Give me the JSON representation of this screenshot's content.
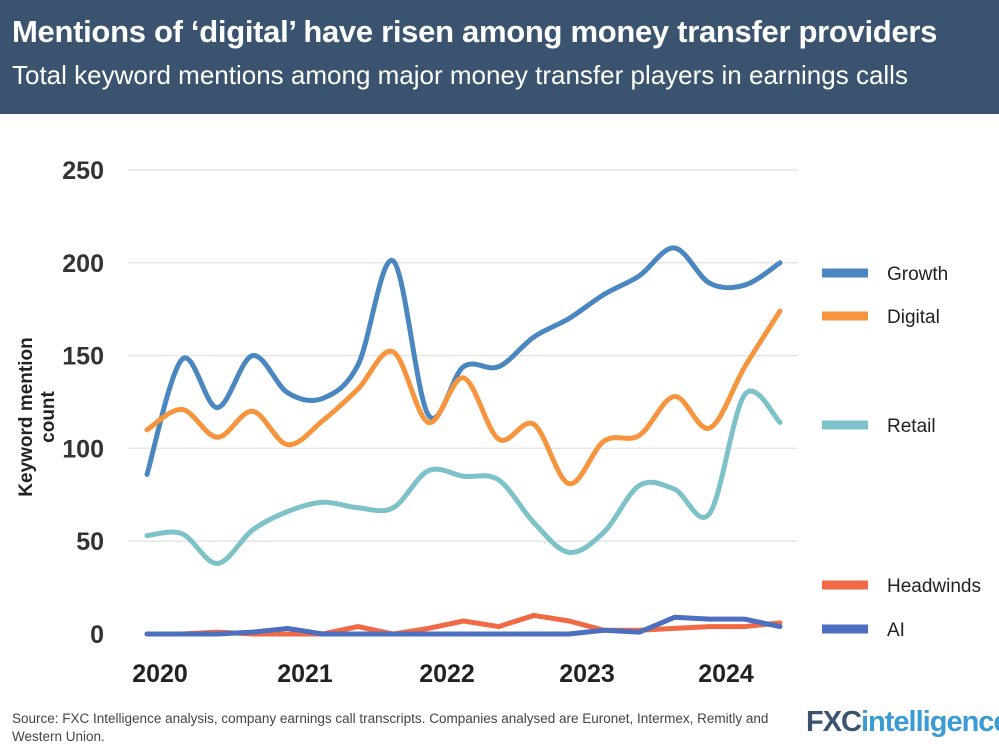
{
  "header": {
    "title": "Mentions of ‘digital’ have risen among money transfer providers",
    "subtitle": "Total keyword mentions among major money transfer players in earnings calls"
  },
  "chart_data": {
    "type": "line",
    "title": "Mentions of ‘digital’ have risen among money transfer providers",
    "subtitle": "Total keyword mentions among major money transfer players in earnings calls",
    "ylabel": "Keyword mention count",
    "xlabel": "",
    "ylim": [
      0,
      250
    ],
    "yticks": [
      0,
      50,
      100,
      150,
      200,
      250
    ],
    "xticks": [
      "2020",
      "2021",
      "2022",
      "2023",
      "2024"
    ],
    "grid": true,
    "legend": "right",
    "series": [
      {
        "name": "Growth",
        "color": "#4a86c0",
        "values": [
          86,
          148,
          122,
          150,
          130,
          127,
          145,
          201,
          118,
          144,
          144,
          160,
          170,
          183,
          193,
          208,
          189,
          188,
          200
        ]
      },
      {
        "name": "Digital",
        "color": "#f7953e",
        "values": [
          110,
          121,
          106,
          120,
          102,
          115,
          132,
          152,
          114,
          138,
          105,
          113,
          81,
          104,
          107,
          128,
          111,
          144,
          174
        ]
      },
      {
        "name": "Retail",
        "color": "#7dc2c9",
        "values": [
          53,
          54,
          38,
          56,
          66,
          71,
          68,
          68,
          88,
          85,
          83,
          60,
          44,
          55,
          80,
          78,
          65,
          129,
          114
        ]
      },
      {
        "name": "Headwinds",
        "color": "#f26a45",
        "values": [
          0,
          0,
          1,
          0,
          0,
          0,
          4,
          0,
          3,
          7,
          4,
          10,
          7,
          2,
          2,
          3,
          4,
          4,
          6
        ]
      },
      {
        "name": "AI",
        "color": "#4d6fc0",
        "values": [
          0,
          0,
          0,
          1,
          3,
          0,
          0,
          0,
          0,
          0,
          0,
          0,
          0,
          2,
          1,
          9,
          8,
          8,
          4
        ]
      }
    ]
  },
  "footer": {
    "source": "Source: FXC Intelligence analysis, company earnings call transcripts. Companies analysed are Euronet, Intermex, Remitly and Western Union.",
    "logo": "FXCintelligence"
  }
}
